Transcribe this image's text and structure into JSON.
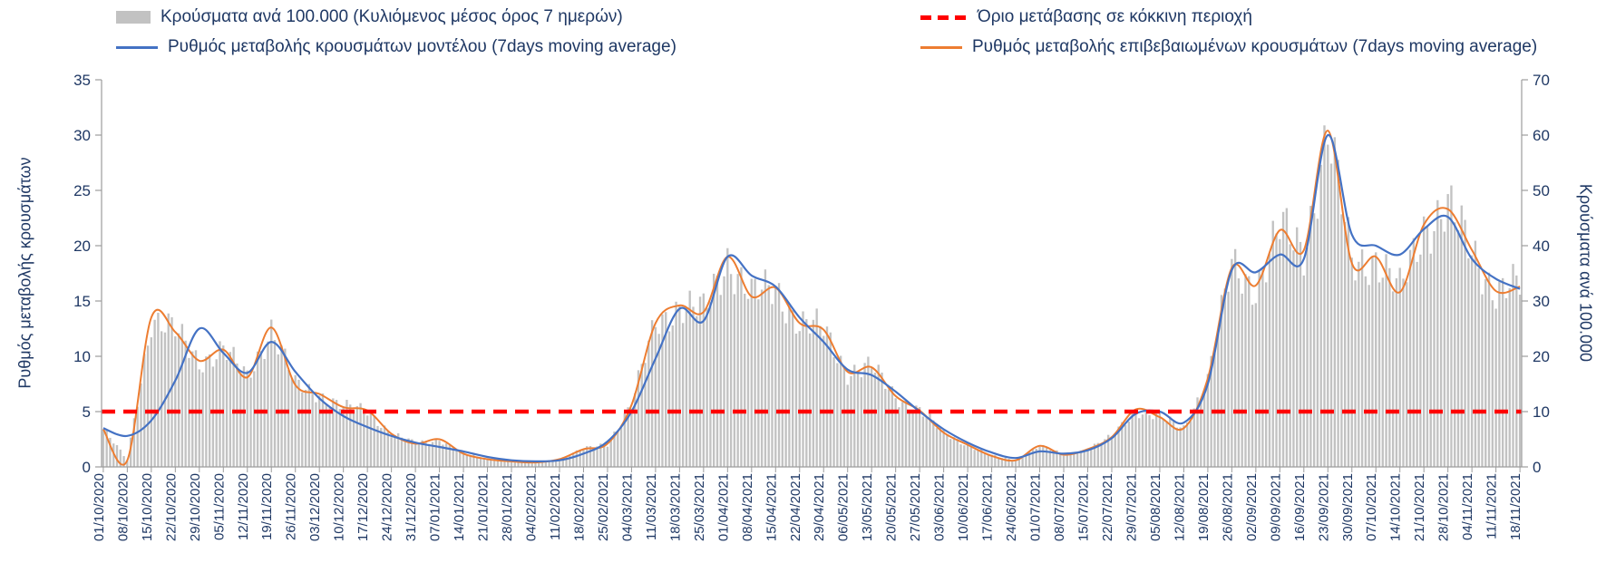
{
  "colors": {
    "bars": "#c2c2c2",
    "model": "#4472c4",
    "confirmed": "#ed7d31",
    "threshold": "#ff0000",
    "text": "#1f3864",
    "axis": "#9c9c9c"
  },
  "chart_data": {
    "type": "bar+line",
    "title": "",
    "legend_position": "top",
    "grid": false,
    "categories": [
      "01/10/2020",
      "08/10/2020",
      "15/10/2020",
      "22/10/2020",
      "29/10/2020",
      "05/11/2020",
      "12/11/2020",
      "19/11/2020",
      "26/11/2020",
      "03/12/2020",
      "10/12/2020",
      "17/12/2020",
      "24/12/2020",
      "31/12/2020",
      "07/01/2021",
      "14/01/2021",
      "21/01/2021",
      "28/01/2021",
      "04/02/2021",
      "11/02/2021",
      "18/02/2021",
      "25/02/2021",
      "04/03/2021",
      "11/03/2021",
      "18/03/2021",
      "25/03/2021",
      "01/04/2021",
      "08/04/2021",
      "15/04/2021",
      "22/04/2021",
      "29/04/2021",
      "06/05/2021",
      "13/05/2021",
      "20/05/2021",
      "27/05/2021",
      "03/06/2021",
      "10/06/2021",
      "17/06/2021",
      "24/06/2021",
      "01/07/2021",
      "08/07/2021",
      "15/07/2021",
      "22/07/2021",
      "29/07/2021",
      "05/08/2021",
      "12/08/2021",
      "19/08/2021",
      "26/08/2021",
      "02/09/2021",
      "09/09/2021",
      "16/09/2021",
      "23/09/2021",
      "30/09/2021",
      "07/10/2021",
      "14/10/2021",
      "21/10/2021",
      "28/10/2021",
      "04/11/2021",
      "11/11/2021",
      "18/11/2021"
    ],
    "series": [
      {
        "name": "Κρούσματα ανά 100.000 (Κυλιόμενος μέσος όρος 7 ημερών)",
        "type": "bar",
        "axis": "right",
        "values": [
          6.8,
          1.2,
          27.0,
          24.4,
          19.2,
          21.2,
          16.2,
          25.2,
          14.8,
          13.2,
          10.8,
          10.2,
          6.0,
          4.2,
          5.0,
          2.4,
          1.4,
          1.0,
          0.8,
          1.4,
          3.2,
          4.2,
          11.2,
          26.0,
          29.2,
          28.0,
          38.0,
          30.8,
          32.4,
          26.0,
          24.8,
          17.2,
          18.0,
          12.8,
          10.2,
          6.2,
          4.0,
          2.0,
          1.2,
          3.8,
          2.2,
          3.2,
          5.4,
          10.4,
          9.0,
          7.0,
          16.0,
          36.0,
          32.8,
          42.8,
          39.2,
          60.8,
          36.8,
          38.0,
          31.6,
          43.8,
          46.6,
          39.2,
          31.8,
          32.6
        ]
      },
      {
        "name": "Ρυθμός μεταβολής κρουσμάτων μοντέλου (7days moving average)",
        "type": "line",
        "axis": "left",
        "values": [
          3.5,
          2.8,
          4.2,
          7.8,
          12.5,
          10.3,
          8.5,
          11.3,
          8.6,
          6.2,
          4.6,
          3.6,
          2.8,
          2.2,
          1.8,
          1.4,
          0.9,
          0.6,
          0.5,
          0.6,
          1.2,
          2.3,
          5.0,
          9.8,
          14.3,
          13.2,
          19.0,
          17.3,
          16.3,
          13.5,
          11.3,
          8.8,
          8.3,
          6.8,
          5.0,
          3.4,
          2.2,
          1.3,
          0.8,
          1.4,
          1.2,
          1.5,
          2.6,
          4.8,
          5.0,
          4.0,
          7.5,
          17.8,
          17.6,
          19.2,
          18.8,
          30.0,
          21.0,
          20.0,
          19.2,
          21.5,
          22.6,
          18.8,
          17.0,
          16.1
        ]
      },
      {
        "name": "Ρυθμός μεταβολής επιβεβαιωμένων κρουσμάτων (7days moving average)",
        "type": "line",
        "axis": "left",
        "values": [
          3.4,
          0.6,
          13.5,
          12.2,
          9.6,
          10.6,
          8.1,
          12.6,
          7.4,
          6.6,
          5.4,
          5.1,
          3.0,
          2.1,
          2.5,
          1.2,
          0.7,
          0.5,
          0.4,
          0.7,
          1.6,
          2.1,
          5.6,
          13.0,
          14.6,
          14.0,
          19.0,
          15.4,
          16.2,
          13.0,
          12.4,
          8.6,
          9.0,
          6.4,
          5.1,
          3.1,
          2.0,
          1.0,
          0.6,
          1.9,
          1.1,
          1.6,
          2.7,
          5.2,
          4.5,
          3.5,
          8.0,
          18.0,
          16.4,
          21.4,
          19.6,
          30.4,
          18.4,
          19.0,
          15.8,
          21.9,
          23.3,
          19.6,
          15.9,
          16.3
        ]
      },
      {
        "name": "Όριο μετάβασης σε κόκκινη περιοχή",
        "type": "threshold",
        "axis": "left",
        "value": 5
      }
    ],
    "left_axis": {
      "title": "Ρυθμός μεταβολής κρουσμάτων",
      "min": 0,
      "max": 35,
      "ticks": [
        0,
        5,
        10,
        15,
        20,
        25,
        30,
        35
      ]
    },
    "right_axis": {
      "title": "Κρούσματα ανά 100.000",
      "min": 0,
      "max": 70,
      "ticks": [
        0,
        10,
        20,
        30,
        40,
        50,
        60,
        70
      ]
    }
  }
}
